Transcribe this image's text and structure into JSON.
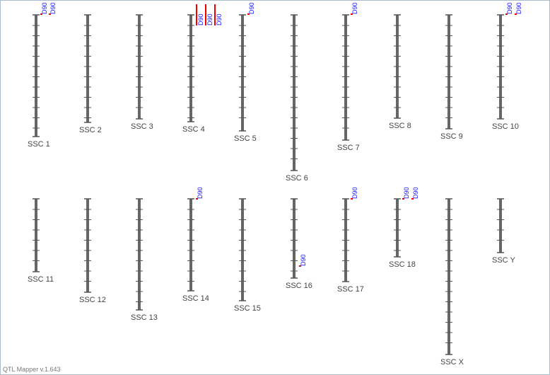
{
  "chromosomes": [
    {
      "label": "SSC 1",
      "qtls": [
        "D90",
        "D90"
      ]
    },
    {
      "label": "SSC 2",
      "qtls": []
    },
    {
      "label": "SSC 3",
      "qtls": []
    },
    {
      "label": "SSC 4",
      "qtls": [
        "D90",
        "D90",
        "D90"
      ]
    },
    {
      "label": "SSC 5",
      "qtls": [
        "D90"
      ]
    },
    {
      "label": "SSC 6",
      "qtls": []
    },
    {
      "label": "SSC 7",
      "qtls": [
        "D90"
      ]
    },
    {
      "label": "SSC 8",
      "qtls": []
    },
    {
      "label": "SSC 9",
      "qtls": []
    },
    {
      "label": "SSC 10",
      "qtls": [
        "D90",
        "D90"
      ]
    },
    {
      "label": "SSC 11",
      "qtls": []
    },
    {
      "label": "SSC 12",
      "qtls": []
    },
    {
      "label": "SSC 13",
      "qtls": []
    },
    {
      "label": "SSC 14",
      "qtls": [
        "D90"
      ]
    },
    {
      "label": "SSC 15",
      "qtls": []
    },
    {
      "label": "SSC 16",
      "qtls": [
        "D90"
      ]
    },
    {
      "label": "SSC 17",
      "qtls": [
        "D90"
      ]
    },
    {
      "label": "SSC 18",
      "qtls": [
        "D90",
        "D90"
      ]
    },
    {
      "label": "SSC X",
      "qtls": []
    },
    {
      "label": "SSC Y",
      "qtls": []
    }
  ],
  "footer": "QTL Mapper v.1.643"
}
